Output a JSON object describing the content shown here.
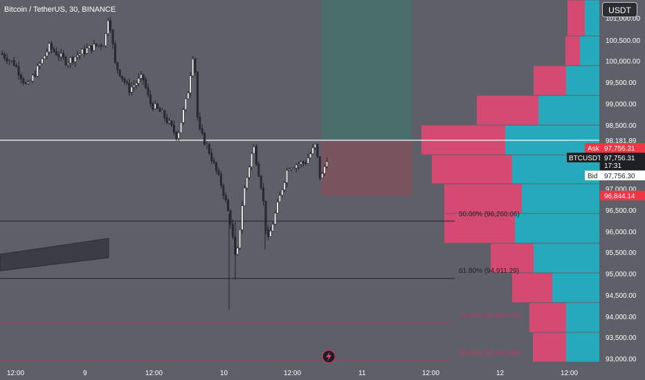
{
  "symbol_title": "Bitcoin / TetherUS, 30, BINANCE",
  "currency_button": "USDT",
  "price_axis": {
    "ticks": [
      {
        "label": "100,500.00",
        "value": 100500
      },
      {
        "label": "100,000.00",
        "value": 100000
      },
      {
        "label": "99,500.00",
        "value": 99500
      },
      {
        "label": "99,000.00",
        "value": 99000
      },
      {
        "label": "98,500.00",
        "value": 98500
      },
      {
        "label": "97,000.00",
        "value": 97000
      },
      {
        "label": "96,500.00",
        "value": 96500
      },
      {
        "label": "96,000.00",
        "value": 96000
      },
      {
        "label": "95,500.00",
        "value": 95500
      },
      {
        "label": "95,000.00",
        "value": 95000
      },
      {
        "label": "94,500.00",
        "value": 94500
      },
      {
        "label": "94,000.00",
        "value": 94000
      },
      {
        "label": "93,500.00",
        "value": 93500
      },
      {
        "label": "93,000.00",
        "value": 93000
      }
    ],
    "clipped_top_label": "101,000.00",
    "line_price_label": "98,181.89",
    "ask": {
      "tag": "Ask",
      "price": "97,756.31"
    },
    "last": {
      "symbol": "BTCUSDT",
      "price": "97,756.31",
      "countdown": "17:31"
    },
    "bid": {
      "tag": "Bid",
      "price": "97,756.30"
    },
    "marker_price": "96,844.14"
  },
  "time_axis": {
    "labels": [
      "12:00",
      "9",
      "12:00",
      "10",
      "12:00",
      "11",
      "12:00",
      "12",
      "12:00"
    ]
  },
  "fib_levels": [
    {
      "label": "50.00% (96,260.06)",
      "price": 96260.06
    },
    {
      "label": "61.80% (94,911.29)",
      "price": 94911.29
    },
    {
      "label": "71.00% (93,859.70)",
      "price": 93859.7
    },
    {
      "label": "78.60% (92,991.00)",
      "price": 92991.0
    }
  ],
  "horizontal_line_price": 98181.89,
  "colors": {
    "background": "#5d6067",
    "candle_up": "#ffffff",
    "candle_down": "#2a2e39",
    "volume_profile_up": "#26a9bb",
    "volume_profile_down": "#d54a73",
    "target_zone": "#4a6f6b",
    "stop_zone": "#7a5560",
    "ask_red": "#f23645",
    "fib_dim": "#c2386a"
  },
  "icons": [
    "lightning-icon"
  ]
}
